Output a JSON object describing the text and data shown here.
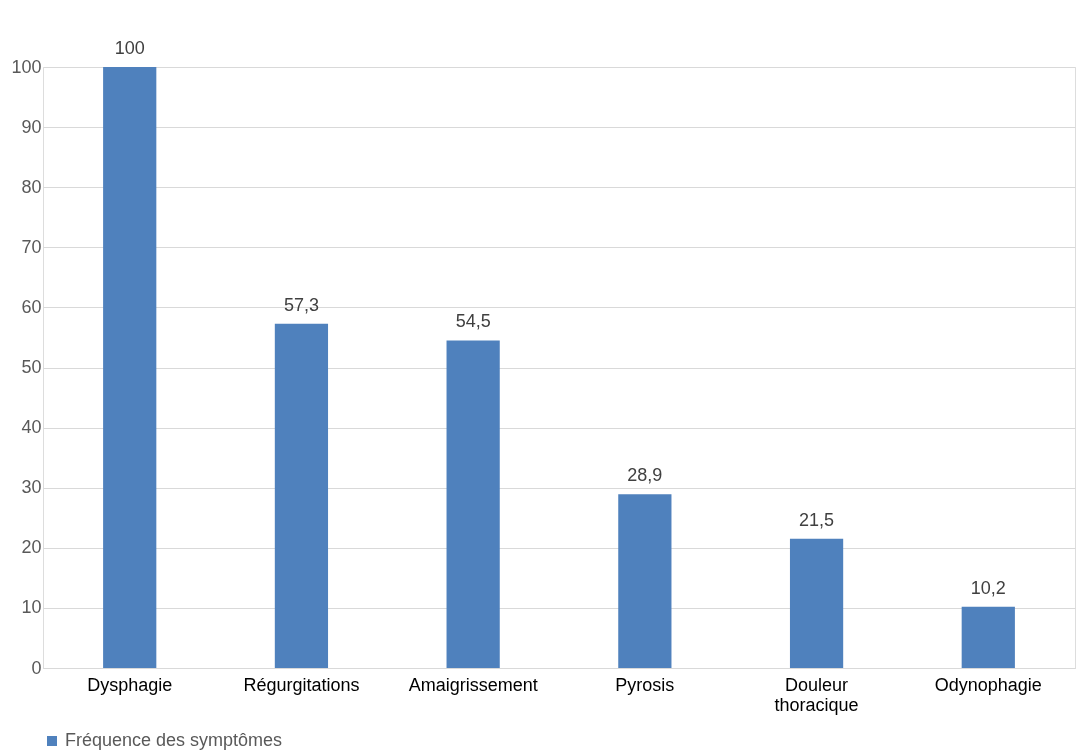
{
  "chart_data": {
    "type": "bar",
    "categories": [
      "Dysphagie",
      "Régurgitations",
      "Amaigrissement",
      "Pyrosis",
      "Douleur thoracique",
      "Odynophagie"
    ],
    "series": [
      {
        "name": "Fréquence des symptômes",
        "color": "#4f81bd",
        "values": [
          100,
          57.3,
          54.5,
          28.9,
          21.5,
          10.2
        ],
        "value_labels": [
          "100",
          "57,3",
          "54,5",
          "28,9",
          "21,5",
          "10,2"
        ]
      }
    ],
    "ylim": [
      0,
      100
    ],
    "yticks": [
      0,
      10,
      20,
      30,
      40,
      50,
      60,
      70,
      80,
      90,
      100
    ],
    "grid": "y",
    "legend": "bottom"
  }
}
